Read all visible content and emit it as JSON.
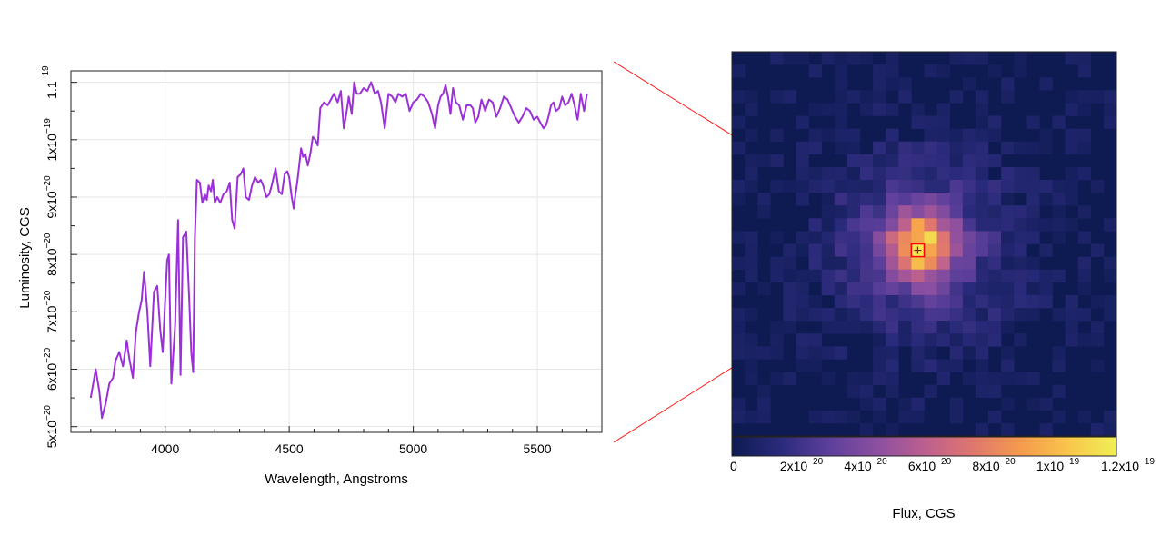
{
  "chart_data": [
    {
      "type": "line",
      "xlabel": "Wavelength, Angstroms",
      "ylabel": "Luminosity, CGS",
      "xlim": [
        3620,
        5760
      ],
      "ylim": [
        4.9e-20,
        1.12e-19
      ],
      "grid": true,
      "x_ticks": [
        {
          "value": 4000,
          "label": "4000"
        },
        {
          "value": 4500,
          "label": "4500"
        },
        {
          "value": 5000,
          "label": "5000"
        },
        {
          "value": 5500,
          "label": "5500"
        }
      ],
      "y_ticks": [
        {
          "value": 5e-20,
          "mant": "5x10",
          "exp": "−20"
        },
        {
          "value": 6e-20,
          "mant": "6x10",
          "exp": "−20"
        },
        {
          "value": 7e-20,
          "mant": "7x10",
          "exp": "−20"
        },
        {
          "value": 8e-20,
          "mant": "8x10",
          "exp": "−20"
        },
        {
          "value": 9e-20,
          "mant": "9x10",
          "exp": "−20"
        },
        {
          "value": 1e-19,
          "mant": "1x10",
          "exp": "−19"
        },
        {
          "value": 1.1e-19,
          "mant": "1.1",
          "exp": "−19",
          "exp_above": true
        }
      ],
      "line_color": "#9b30d9",
      "series": [
        {
          "x": [
            3700,
            3720,
            3735,
            3745,
            3760,
            3775,
            3790,
            3800,
            3815,
            3830,
            3845,
            3855,
            3870,
            3882,
            3895,
            3905,
            3915,
            3928,
            3940,
            3955,
            3968,
            3980,
            3990,
            4000,
            4008,
            4015,
            4025,
            4040,
            4052,
            4062,
            4072,
            4085,
            4097,
            4105,
            4113,
            4120,
            4128,
            4140,
            4150,
            4160,
            4168,
            4175,
            4185,
            4192,
            4200,
            4210,
            4222,
            4235,
            4248,
            4260,
            4270,
            4280,
            4292,
            4305,
            4315,
            4325,
            4338,
            4350,
            4362,
            4375,
            4385,
            4395,
            4408,
            4420,
            4432,
            4445,
            4458,
            4470,
            4482,
            4492,
            4500,
            4510,
            4518,
            4525,
            4532,
            4540,
            4548,
            4556,
            4565,
            4575,
            4585,
            4595,
            4605,
            4615,
            4625,
            4640,
            4655,
            4668,
            4680,
            4695,
            4708,
            4720,
            4730,
            4740,
            4752,
            4762,
            4772,
            4785,
            4800,
            4815,
            4830,
            4845,
            4858,
            4870,
            4885,
            4900,
            4915,
            4928,
            4940,
            4955,
            4970,
            4985,
            5000,
            5015,
            5030,
            5045,
            5060,
            5075,
            5088,
            5100,
            5110,
            5120,
            5130,
            5140,
            5150,
            5160,
            5172,
            5185,
            5200,
            5215,
            5230,
            5240,
            5250,
            5262,
            5275,
            5290,
            5305,
            5320,
            5335,
            5350,
            5365,
            5380,
            5395,
            5410,
            5425,
            5440,
            5455,
            5470,
            5485,
            5500,
            5512,
            5525,
            5535,
            5545,
            5555,
            5565,
            5575,
            5588,
            5600,
            5612,
            5625,
            5638,
            5650,
            5662,
            5675,
            5688,
            5700
          ],
          "y": [
            5.5e-20,
            6e-20,
            5.6e-20,
            5.15e-20,
            5.4e-20,
            5.75e-20,
            5.85e-20,
            6.15e-20,
            6.3e-20,
            6.05e-20,
            6.5e-20,
            6.2e-20,
            5.85e-20,
            6.65e-20,
            7e-20,
            7.2e-20,
            7.7e-20,
            7e-20,
            6.05e-20,
            7.35e-20,
            7.45e-20,
            6.7e-20,
            6.3e-20,
            7.2e-20,
            7.9e-20,
            8e-20,
            5.75e-20,
            6.75e-20,
            8.6e-20,
            5.9e-20,
            8.3e-20,
            8.4e-20,
            7.2e-20,
            6.3e-20,
            5.95e-20,
            8.3e-20,
            9.3e-20,
            9.25e-20,
            8.9e-20,
            9.05e-20,
            8.95e-20,
            9.2e-20,
            9.1e-20,
            9.3e-20,
            8.9e-20,
            9e-20,
            8.9e-20,
            9.05e-20,
            9.1e-20,
            9.25e-20,
            8.6e-20,
            8.45e-20,
            9.35e-20,
            9.4e-20,
            9.5e-20,
            9e-20,
            8.95e-20,
            9.2e-20,
            9.35e-20,
            9.25e-20,
            9.3e-20,
            9.2e-20,
            9e-20,
            9.05e-20,
            9.25e-20,
            9.5e-20,
            9.1e-20,
            9.05e-20,
            9.4e-20,
            9.45e-20,
            9.35e-20,
            9e-20,
            8.8e-20,
            9.05e-20,
            9.25e-20,
            9.55e-20,
            9.85e-20,
            9.7e-20,
            9.75e-20,
            9.55e-20,
            9.75e-20,
            1.005e-19,
            1e-19,
            9.9e-20,
            1.055e-19,
            1.065e-19,
            1.06e-19,
            1.07e-19,
            1.08e-19,
            1.065e-19,
            1.085e-19,
            1.02e-19,
            1.045e-19,
            1.075e-19,
            1.045e-19,
            1.1e-19,
            1.08e-19,
            1.08e-19,
            1.09e-19,
            1.085e-19,
            1.1e-19,
            1.08e-19,
            1.085e-19,
            1.065e-19,
            1.02e-19,
            1.08e-19,
            1.075e-19,
            1.065e-19,
            1.08e-19,
            1.075e-19,
            1.08e-19,
            1.05e-19,
            1.065e-19,
            1.07e-19,
            1.08e-19,
            1.075e-19,
            1.065e-19,
            1.045e-19,
            1.02e-19,
            1.06e-19,
            1.075e-19,
            1.08e-19,
            1.095e-19,
            1.075e-19,
            1.045e-19,
            1.09e-19,
            1.065e-19,
            1.06e-19,
            1.035e-19,
            1.06e-19,
            1.06e-19,
            1.055e-19,
            1.03e-19,
            1.04e-19,
            1.07e-19,
            1.05e-19,
            1.07e-19,
            1.065e-19,
            1.04e-19,
            1.055e-19,
            1.075e-19,
            1.07e-19,
            1.055e-19,
            1.04e-19,
            1.03e-19,
            1.04e-19,
            1.055e-19,
            1.05e-19,
            1.035e-19,
            1.04e-19,
            1.03e-19,
            1.02e-19,
            1.025e-19,
            1.04e-19,
            1.06e-19,
            1.065e-19,
            1.05e-19,
            1.055e-19,
            1.075e-19,
            1.06e-19,
            1.065e-19,
            1.08e-19,
            1.06e-19,
            1.035e-19,
            1.08e-19,
            1.05e-19,
            1.08e-19
          ]
        }
      ]
    },
    {
      "type": "heatmap",
      "rows": 30,
      "cols": 30,
      "marked_cell": [
        15,
        14
      ],
      "marker_color": "#ff0000",
      "colorbar": {
        "label": "Flux, CGS",
        "range": [
          0,
          1.2e-19
        ],
        "stops": [
          "#0d1b52",
          "#2a2a7a",
          "#5b3f9a",
          "#8a4fa0",
          "#bb5f8f",
          "#e0766e",
          "#f59a4e",
          "#f8c64a",
          "#f0ef55"
        ],
        "ticks": [
          {
            "value": 0,
            "mant": "0",
            "exp": ""
          },
          {
            "value": 2e-20,
            "mant": "2x10",
            "exp": "−20"
          },
          {
            "value": 4e-20,
            "mant": "4x10",
            "exp": "−20"
          },
          {
            "value": 6e-20,
            "mant": "6x10",
            "exp": "−20"
          },
          {
            "value": 8e-20,
            "mant": "8x10",
            "exp": "−20"
          },
          {
            "value": 1e-19,
            "mant": "1x10",
            "exp": "−19"
          },
          {
            "value": 1.2e-19,
            "mant": "1.2x10",
            "exp": "−19"
          }
        ]
      },
      "connector_color": "#ff0000"
    }
  ]
}
